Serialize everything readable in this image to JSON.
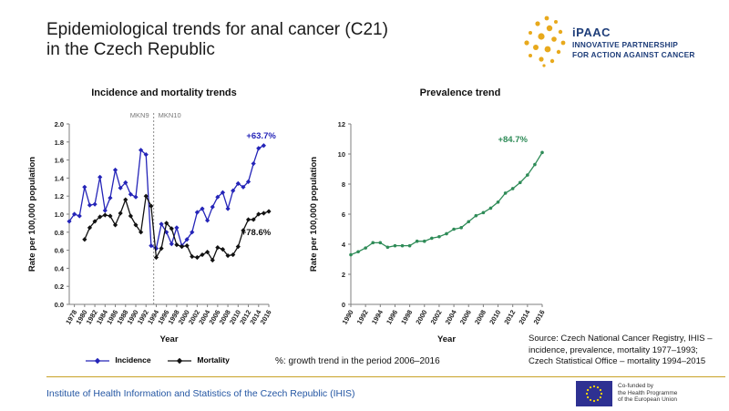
{
  "page": {
    "title_line1": "Epidemiological trends for anal cancer (C21)",
    "title_line2": "in the Czech Republic",
    "logo": {
      "name": "iPAAC",
      "line1": "INNOVATIVE PARTNERSHIP",
      "line2": "FOR ACTION AGAINST CANCER",
      "color": "#1f3e7a",
      "dot_color": "#e8a91c"
    },
    "note": "%: growth trend in the period 2006–2016",
    "source_lines": [
      "Source: Czech National Cancer Registry, IHIS –",
      "incidence, prevalence, mortality 1977–1993;",
      "Czech Statistical Office – mortality 1994–2015"
    ],
    "footer": "Institute of Health Information and Statistics of the Czech Republic (IHIS)",
    "eu_text": [
      "Co-funded by",
      "the Health Programme",
      "of the European Union"
    ],
    "accent_rule_color": "#c9a227"
  },
  "chart_data": [
    {
      "type": "line",
      "title": "Incidence and mortality trends",
      "xlabel": "Year",
      "ylabel": "Rate per 100,000 population",
      "ylim": [
        0,
        2.0
      ],
      "yticks": [
        "0.0",
        "0.2",
        "0.4",
        "0.6",
        "0.8",
        "1.0",
        "1.2",
        "1.4",
        "1.6",
        "1.8",
        "2.0"
      ],
      "xlim": [
        1977,
        2016
      ],
      "xticks": [
        "1978",
        "1980",
        "1982",
        "1984",
        "1986",
        "1988",
        "1990",
        "1992",
        "1994",
        "1996",
        "1998",
        "2000",
        "2002",
        "2004",
        "2006",
        "2008",
        "2010",
        "2012",
        "2014",
        "2016"
      ],
      "divider": {
        "x": 1993.5,
        "left_label": "MKN9",
        "right_label": "MKN10"
      },
      "grid": false,
      "legend_position": "bottom",
      "series": [
        {
          "name": "Incidence",
          "color": "#2424b8",
          "marker": "diamond",
          "x": [
            1977,
            1978,
            1979,
            1980,
            1981,
            1982,
            1983,
            1984,
            1985,
            1986,
            1987,
            1988,
            1989,
            1990,
            1991,
            1992,
            1993,
            1994,
            1995,
            1996,
            1997,
            1998,
            1999,
            2000,
            2001,
            2002,
            2003,
            2004,
            2005,
            2006,
            2007,
            2008,
            2009,
            2010,
            2011,
            2012,
            2013,
            2014,
            2015,
            2016
          ],
          "values": [
            0.92,
            1.0,
            0.98,
            1.3,
            1.1,
            1.11,
            1.41,
            1.04,
            1.18,
            1.49,
            1.29,
            1.35,
            1.22,
            1.19,
            1.71,
            1.66,
            0.65,
            0.62,
            0.89,
            0.8,
            0.67,
            0.85,
            0.65,
            0.72,
            0.8,
            1.02,
            1.06,
            0.93,
            1.08,
            1.19,
            1.24,
            1.06,
            1.26,
            1.34,
            1.3,
            1.36,
            1.56,
            1.73,
            1.76,
            null
          ]
        },
        {
          "name": "Mortality",
          "color": "#111111",
          "marker": "diamond",
          "x": [
            1980,
            1981,
            1982,
            1983,
            1984,
            1985,
            1986,
            1987,
            1988,
            1989,
            1990,
            1991,
            1992,
            1993,
            1994,
            1995,
            1996,
            1997,
            1998,
            1999,
            2000,
            2001,
            2002,
            2003,
            2004,
            2005,
            2006,
            2007,
            2008,
            2009,
            2010,
            2011,
            2012,
            2013,
            2014,
            2015,
            2016
          ],
          "values": [
            0.72,
            0.85,
            0.92,
            0.97,
            0.99,
            0.98,
            0.88,
            1.01,
            1.16,
            0.98,
            0.88,
            0.8,
            1.2,
            1.09,
            0.52,
            0.62,
            0.9,
            0.84,
            0.66,
            0.64,
            0.65,
            0.53,
            0.52,
            0.55,
            0.58,
            0.49,
            0.63,
            0.61,
            0.54,
            0.55,
            0.64,
            0.82,
            0.94,
            0.94,
            1.0,
            1.01,
            1.03
          ]
        }
      ],
      "annotations": [
        {
          "text": "+63.7%",
          "series": "Incidence",
          "x": 2014.5,
          "y": 1.84
        },
        {
          "text": "+78.6%",
          "series": "Mortality",
          "x": 2013.5,
          "y": 0.77
        }
      ]
    },
    {
      "type": "line",
      "title": "Prevalence trend",
      "xlabel": "Year",
      "ylabel": "Rate per 100,000 population",
      "ylim": [
        0,
        12
      ],
      "yticks": [
        "0",
        "2",
        "4",
        "6",
        "8",
        "10",
        "12"
      ],
      "xlim": [
        1990,
        2016
      ],
      "xticks": [
        "1990",
        "1992",
        "1994",
        "1996",
        "1998",
        "2000",
        "2002",
        "2004",
        "2006",
        "2008",
        "2010",
        "2012",
        "2014",
        "2016"
      ],
      "grid": false,
      "series": [
        {
          "name": "",
          "color": "#2e8b57",
          "marker": "circle",
          "x": [
            1990,
            1991,
            1992,
            1993,
            1994,
            1995,
            1996,
            1997,
            1998,
            1999,
            2000,
            2001,
            2002,
            2003,
            2004,
            2005,
            2006,
            2007,
            2008,
            2009,
            2010,
            2011,
            2012,
            2013,
            2014,
            2015,
            2016
          ],
          "values": [
            3.3,
            3.5,
            3.75,
            4.1,
            4.1,
            3.8,
            3.9,
            3.9,
            3.9,
            4.2,
            4.2,
            4.4,
            4.5,
            4.7,
            5.0,
            5.1,
            5.5,
            5.9,
            6.1,
            6.4,
            6.8,
            7.4,
            7.7,
            8.1,
            8.6,
            9.3,
            10.1
          ]
        }
      ],
      "annotations": [
        {
          "text": "+84.7%",
          "x": 2012,
          "y": 10.8
        }
      ]
    }
  ]
}
